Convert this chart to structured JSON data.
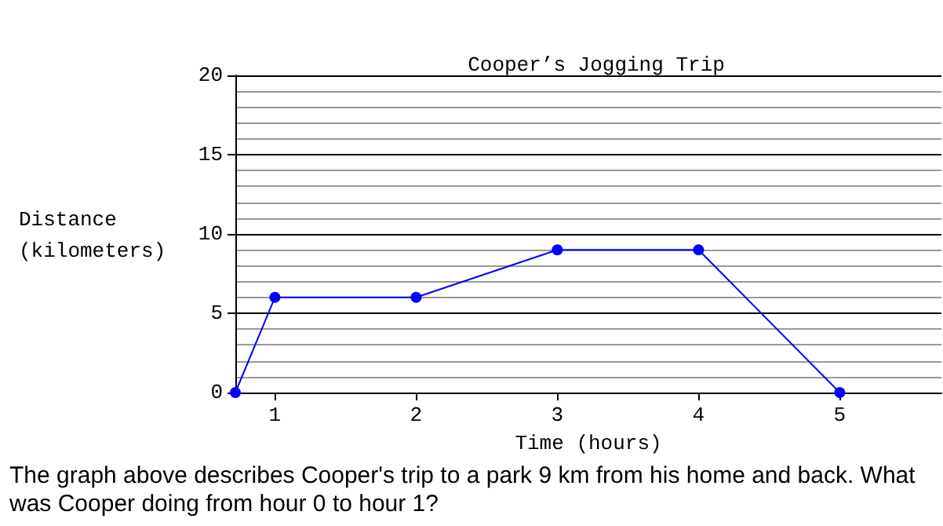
{
  "chart_data": {
    "type": "line",
    "title": "Cooper’s Jogging Trip",
    "xlabel": "Time (hours)",
    "ylabel": "Distance\n(kilometers)",
    "x": [
      0.72,
      1,
      2,
      3,
      4,
      5
    ],
    "series": [
      {
        "color": "#0000ff",
        "values": [
          0,
          6,
          6,
          9,
          9,
          0
        ]
      }
    ],
    "xlim": [
      0.72,
      5.72
    ],
    "xticks": [
      1,
      2,
      3,
      4,
      5
    ],
    "ylim": [
      0,
      20
    ],
    "yticks": [
      0,
      5,
      10,
      15,
      20
    ],
    "grid": "y",
    "marker": "circle",
    "line_style": "solid",
    "annotations": [
      "The graph above describes Cooper's trip to a park 9 km from his home and back. What was Cooper doing from hour 0 to hour 1?"
    ]
  }
}
